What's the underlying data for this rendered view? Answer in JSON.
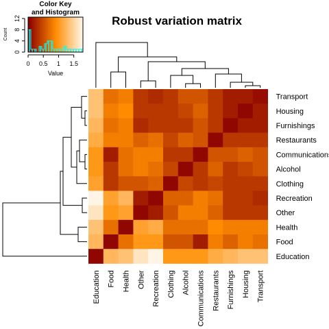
{
  "chart_data": {
    "type": "heatmap",
    "title": "Robust variation matrix",
    "row_labels": [
      "Transport",
      "Housing",
      "Furnishings",
      "Restaurants",
      "Communications",
      "Alcohol",
      "Clothing",
      "Recreation",
      "Other",
      "Health",
      "Food",
      "Education"
    ],
    "col_labels": [
      "Education",
      "Food",
      "Health",
      "Other",
      "Recreation",
      "Clothing",
      "Alcohol",
      "Communications",
      "Restaurants",
      "Furnishings",
      "Housing",
      "Transport"
    ],
    "values": [
      [
        0.75,
        0.4,
        0.45,
        0.2,
        0.15,
        0.2,
        0.3,
        0.3,
        0.2,
        0.1,
        0.1,
        0.05
      ],
      [
        0.75,
        0.45,
        0.5,
        0.2,
        0.2,
        0.2,
        0.25,
        0.35,
        0.2,
        0.1,
        0.02,
        0.1
      ],
      [
        0.7,
        0.4,
        0.45,
        0.15,
        0.2,
        0.2,
        0.2,
        0.3,
        0.2,
        0.02,
        0.1,
        0.1
      ],
      [
        0.65,
        0.45,
        0.45,
        0.35,
        0.4,
        0.25,
        0.35,
        0.3,
        0.02,
        0.2,
        0.2,
        0.2
      ],
      [
        0.55,
        0.1,
        0.4,
        0.45,
        0.45,
        0.2,
        0.2,
        0.02,
        0.3,
        0.3,
        0.35,
        0.3
      ],
      [
        0.55,
        0.2,
        0.4,
        0.45,
        0.4,
        0.25,
        0.02,
        0.2,
        0.35,
        0.2,
        0.25,
        0.3
      ],
      [
        0.6,
        0.2,
        0.3,
        0.3,
        0.35,
        0.02,
        0.25,
        0.2,
        0.25,
        0.2,
        0.2,
        0.2
      ],
      [
        1.0,
        0.6,
        0.7,
        0.1,
        0.02,
        0.35,
        0.35,
        0.45,
        0.4,
        0.2,
        0.2,
        0.15
      ],
      [
        0.92,
        0.55,
        0.6,
        0.02,
        0.1,
        0.3,
        0.45,
        0.45,
        0.35,
        0.2,
        0.2,
        0.2
      ],
      [
        0.75,
        0.4,
        0.02,
        0.6,
        0.65,
        0.4,
        0.4,
        0.4,
        0.5,
        0.45,
        0.45,
        0.45
      ],
      [
        0.7,
        0.02,
        0.4,
        0.55,
        0.55,
        0.3,
        0.3,
        0.1,
        0.45,
        0.35,
        0.45,
        0.4
      ],
      [
        0.02,
        0.7,
        0.75,
        0.92,
        1.0,
        0.55,
        0.55,
        0.55,
        0.65,
        0.7,
        0.75,
        0.75
      ]
    ],
    "color_scale": [
      "#8b0000",
      "#ff8c00",
      "#fff5e6"
    ],
    "color_key": {
      "title_line1": "Color Key",
      "title_line2": "and Histogram",
      "xlabel": "Value",
      "ylabel": "Count",
      "xticks": [
        "0",
        "0.5",
        "1",
        "1.5"
      ],
      "yticks": [
        "0",
        "4",
        "8",
        "12"
      ],
      "xlim": [
        0,
        1.8
      ],
      "ylim": [
        0,
        12.5
      ],
      "histogram_counts": [
        8,
        1,
        1,
        0,
        2,
        1,
        3,
        4,
        4,
        1,
        1,
        1,
        1,
        2,
        1,
        1,
        1,
        1,
        1,
        1
      ],
      "histogram_color": "#00ffff"
    }
  }
}
